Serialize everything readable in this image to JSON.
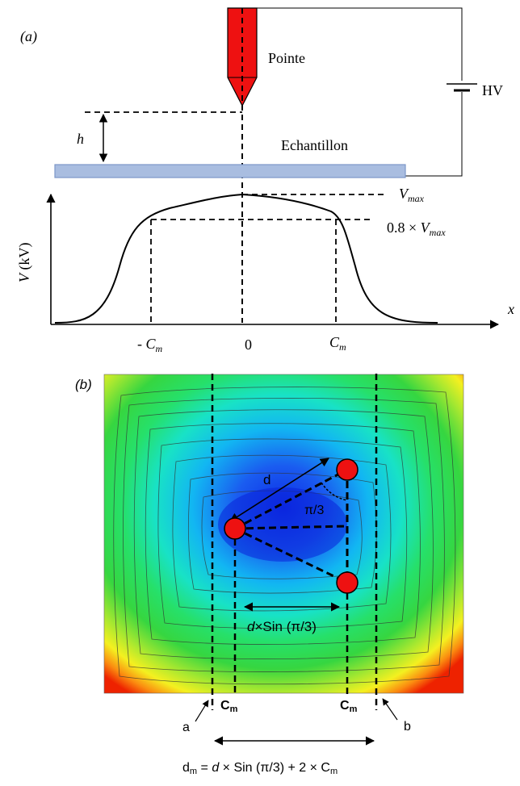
{
  "panel_a": {
    "label": "(a)",
    "tip_label": "Pointe",
    "supply_label": "HV",
    "height_label": "h",
    "sample_label": "Echantillon",
    "vmax_label": "V",
    "vmax_sub": "max",
    "vmax80_prefix": "0.8 × ",
    "vmax80_var": "V",
    "vmax80_sub": "max",
    "y_axis_var": "V",
    "y_axis_unit": " (kV)",
    "x_axis_label": "x",
    "tick_neg_prefix": "- ",
    "tick_neg_var": "C",
    "tick_neg_sub": "m",
    "tick_zero": "0",
    "tick_pos_var": "C",
    "tick_pos_sub": "m",
    "colors": {
      "tip": "#ee1111",
      "sample": "#a9bde0",
      "sample_border": "#7c96c8"
    }
  },
  "panel_b": {
    "label": "(b)",
    "d_label": "d",
    "angle_label": "π/3",
    "spacing_var": "d",
    "spacing_rest": "×Sin (π/3)",
    "cm_left": "C",
    "cm_left_sub": "m",
    "cm_right": "C",
    "cm_right_sub": "m",
    "marker_a": "a",
    "marker_b": "b",
    "formula_var": "d",
    "formula_sub": "m",
    "formula_eq": " = ",
    "formula_d": "d",
    "formula_rest": " × Sin (π/3) + 2 × C",
    "formula_sub2": "m",
    "colors": {
      "electrode": "#ee1111",
      "map_edge": "#ee2200",
      "map_center": "#1030e0"
    }
  }
}
